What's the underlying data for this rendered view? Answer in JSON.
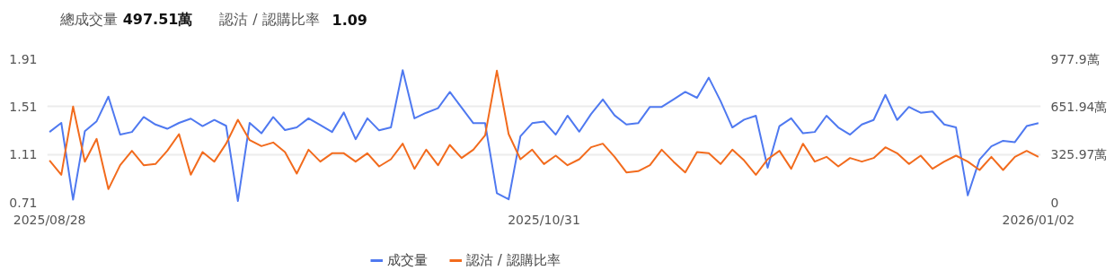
{
  "chart_data": {
    "type": "line",
    "annotations": [
      "總成交量",
      "497.51萬",
      "認沽 / 認購比率",
      "1.09"
    ],
    "categories": [
      "2025/08/28",
      null,
      null,
      null,
      null,
      null,
      null,
      null,
      null,
      null,
      null,
      null,
      null,
      null,
      null,
      null,
      null,
      null,
      null,
      null,
      null,
      null,
      null,
      null,
      null,
      null,
      null,
      null,
      null,
      null,
      null,
      null,
      null,
      null,
      null,
      null,
      null,
      null,
      null,
      null,
      null,
      null,
      "2025/10/31",
      null,
      null,
      null,
      null,
      null,
      null,
      null,
      null,
      null,
      null,
      null,
      null,
      null,
      null,
      null,
      null,
      null,
      null,
      null,
      null,
      null,
      null,
      null,
      null,
      null,
      null,
      null,
      null,
      null,
      null,
      null,
      null,
      null,
      null,
      null,
      null,
      null,
      null,
      null,
      null,
      null,
      "2026/01/02"
    ],
    "series": [
      {
        "name": "成交量",
        "color": "#4f79f0",
        "axis": "y2",
        "values": [
          479,
          541,
          18,
          484,
          552,
          720,
          461,
          479,
          581,
          530,
          501,
          541,
          570,
          519,
          561,
          521,
          9,
          541,
          470,
          581,
          492,
          510,
          572,
          526,
          479,
          612,
          430,
          572,
          490,
          510,
          900,
          572,
          610,
          641,
          752,
          645,
          539,
          539,
          62,
          20,
          450,
          539,
          550,
          461,
          590,
          481,
          601,
          701,
          592,
          530,
          539,
          650,
          650,
          701,
          752,
          712,
          849,
          690,
          510,
          563,
          590,
          235,
          519,
          572,
          470,
          479,
          590,
          510,
          461,
          530,
          561,
          732,
          561,
          650,
          610,
          619,
          530,
          510,
          47,
          291,
          381,
          419,
          410,
          519,
          539
        ]
      },
      {
        "name": "認沽 / 認購比率",
        "color": "#f26b1d",
        "values": [
          1.06,
          0.94,
          1.51,
          1.05,
          1.24,
          0.82,
          1.02,
          1.14,
          1.02,
          1.03,
          1.14,
          1.28,
          0.94,
          1.13,
          1.05,
          1.2,
          1.4,
          1.23,
          1.18,
          1.21,
          1.13,
          0.95,
          1.15,
          1.05,
          1.12,
          1.12,
          1.05,
          1.12,
          1.01,
          1.07,
          1.2,
          0.99,
          1.15,
          1.02,
          1.19,
          1.08,
          1.15,
          1.27,
          1.81,
          1.28,
          1.07,
          1.15,
          1.03,
          1.1,
          1.02,
          1.07,
          1.17,
          1.2,
          1.09,
          0.96,
          0.97,
          1.02,
          1.15,
          1.05,
          0.96,
          1.13,
          1.12,
          1.03,
          1.15,
          1.06,
          0.94,
          1.07,
          1.14,
          0.99,
          1.2,
          1.05,
          1.09,
          1.01,
          1.08,
          1.05,
          1.08,
          1.17,
          1.12,
          1.03,
          1.1,
          0.99,
          1.05,
          1.1,
          1.05,
          0.98,
          1.09,
          0.98,
          1.09,
          1.14,
          1.09
        ]
      }
    ],
    "ylim": [
      0.71,
      1.91
    ],
    "yticks": [
      0.71,
      1.11,
      1.51,
      1.91
    ],
    "y2lim": [
      0,
      977.9
    ],
    "y2ticks": [
      0,
      {
        "value": 325.97,
        "label": "325.97萬"
      },
      {
        "value": 651.94,
        "label": "651.94萬"
      },
      {
        "value": 977.9,
        "label": "977.9萬"
      }
    ],
    "grid": "y",
    "legend": "bottom",
    "marker": "none",
    "line_style": "solid"
  }
}
